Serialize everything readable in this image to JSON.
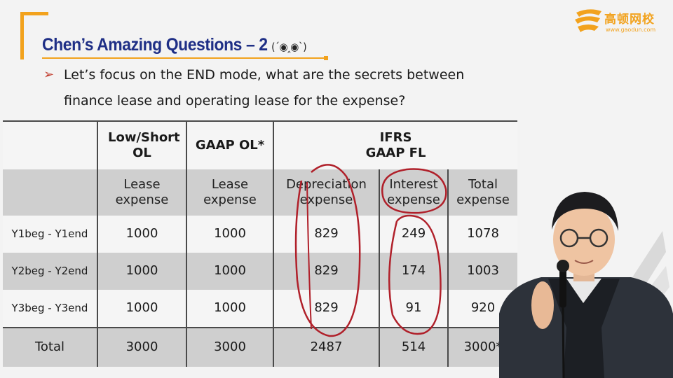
{
  "slide": {
    "title": "Chen’s Amazing Questions – 2",
    "emoticon": "(ˊ◉‸◉ˋ)",
    "bullet": "➢",
    "question_line1": "Let’s focus on the END mode, what are the secrets between",
    "question_line2": "finance lease and operating lease for the expense?"
  },
  "logo": {
    "name": "高顿网校",
    "url": "www.gaodun.com"
  },
  "table": {
    "header1": [
      "",
      "Low/Short OL",
      "GAAP OL*",
      "IFRS GAAP FL"
    ],
    "header2": [
      "",
      "Lease expense",
      "Lease expense",
      "Depreciation expense",
      "Interest expense",
      "Total expense"
    ],
    "rows": [
      {
        "label": "Y1beg - Y1end",
        "cells": [
          "1000",
          "1000",
          "829",
          "249",
          "1078"
        ]
      },
      {
        "label": "Y2beg - Y2end",
        "cells": [
          "1000",
          "1000",
          "829",
          "174",
          "1003"
        ]
      },
      {
        "label": "Y3beg - Y3end",
        "cells": [
          "1000",
          "1000",
          "829",
          "91",
          "920"
        ]
      }
    ],
    "total": {
      "label": "Total",
      "cells": [
        "3000",
        "3000",
        "2487",
        "514",
        "3000*"
      ]
    }
  },
  "colors": {
    "title": "#1f2f86",
    "accent": "#f2a21d",
    "annotation": "#b0202a",
    "header_gray": "#cfcfcf"
  }
}
